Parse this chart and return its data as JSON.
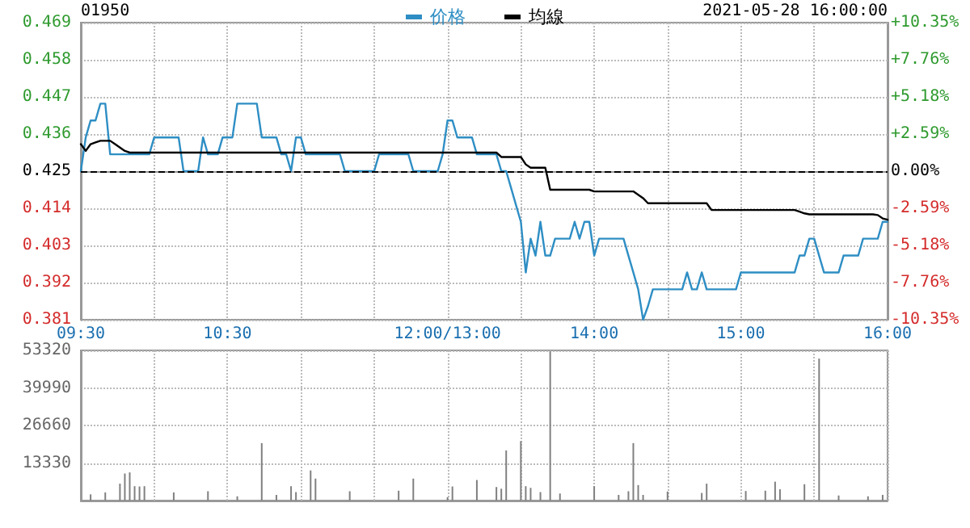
{
  "chart_data": [
    {
      "type": "line",
      "annotations": [
        "01950",
        "2021-05-28 16:00:00"
      ],
      "legend": "top",
      "grid": true,
      "marker": "none",
      "line_style": "solid",
      "categories": [
        "09:30",
        null,
        null,
        null,
        null,
        null,
        null,
        null,
        null,
        null,
        null,
        null,
        null,
        null,
        null,
        null,
        null,
        null,
        null,
        null,
        null,
        null,
        null,
        null,
        null,
        null,
        null,
        null,
        null,
        null,
        "10:30",
        null,
        null,
        null,
        null,
        null,
        null,
        null,
        null,
        null,
        null,
        null,
        null,
        null,
        null,
        null,
        null,
        null,
        null,
        null,
        null,
        null,
        null,
        null,
        null,
        null,
        null,
        null,
        null,
        null,
        null,
        null,
        null,
        null,
        null,
        null,
        null,
        null,
        null,
        null,
        null,
        null,
        null,
        null,
        null,
        "12:00/13:00",
        null,
        null,
        null,
        null,
        null,
        null,
        null,
        null,
        null,
        null,
        null,
        null,
        null,
        null,
        null,
        null,
        null,
        null,
        null,
        null,
        null,
        null,
        null,
        null,
        null,
        null,
        null,
        null,
        null,
        "14:00",
        null,
        null,
        null,
        null,
        null,
        null,
        null,
        null,
        null,
        null,
        null,
        null,
        null,
        null,
        null,
        null,
        null,
        null,
        null,
        null,
        null,
        null,
        null,
        null,
        null,
        null,
        null,
        null,
        null,
        "15:00",
        null,
        null,
        null,
        null,
        null,
        null,
        null,
        null,
        null,
        null,
        null,
        null,
        null,
        null,
        null,
        null,
        null,
        null,
        null,
        null,
        null,
        null,
        null,
        null,
        null,
        null,
        null,
        null,
        null,
        "16:00"
      ],
      "ylim": [
        0.381,
        0.469
      ],
      "yticks": [
        0.381,
        0.392,
        0.403,
        0.414,
        0.425,
        0.436,
        0.447,
        0.458,
        0.469
      ],
      "y2lim": [
        -10.35,
        10.35
      ],
      "y2ticks": [
        {
          "value": -10.35,
          "label": "-10.35%"
        },
        {
          "value": -7.76,
          "label": "-7.76%"
        },
        {
          "value": -5.18,
          "label": "-5.18%"
        },
        {
          "value": -2.59,
          "label": "-2.59%"
        },
        {
          "value": 0,
          "label": "0.00%"
        },
        {
          "value": 2.59,
          "label": "+2.59%"
        },
        {
          "value": 5.18,
          "label": "+5.18%"
        },
        {
          "value": 7.76,
          "label": "+7.76%"
        },
        {
          "value": 10.35,
          "label": "+10.35%"
        }
      ],
      "ref_lines": [
        {
          "axis": "y",
          "value": 0.425,
          "color": "#000000",
          "line_style": "dashed"
        }
      ],
      "series": [
        {
          "name": "价格",
          "color": "#2e8ec4",
          "values": [
            0.425,
            0.435,
            0.44,
            0.44,
            0.445,
            0.445,
            0.43,
            0.43,
            0.43,
            0.43,
            0.43,
            0.43,
            0.43,
            0.43,
            0.43,
            0.435,
            0.435,
            0.435,
            0.435,
            0.435,
            0.435,
            0.425,
            0.425,
            0.425,
            0.425,
            0.435,
            0.43,
            0.43,
            0.43,
            0.435,
            0.435,
            0.435,
            0.445,
            0.445,
            0.445,
            0.445,
            0.445,
            0.435,
            0.435,
            0.435,
            0.435,
            0.43,
            0.43,
            0.425,
            0.435,
            0.435,
            0.43,
            0.43,
            0.43,
            0.43,
            0.43,
            0.43,
            0.43,
            0.43,
            0.425,
            0.425,
            0.425,
            0.425,
            0.425,
            0.425,
            0.425,
            0.43,
            0.43,
            0.43,
            0.43,
            0.43,
            0.43,
            0.43,
            0.425,
            0.425,
            0.425,
            0.425,
            0.425,
            0.425,
            0.43,
            0.44,
            0.44,
            0.435,
            0.435,
            0.435,
            0.435,
            0.43,
            0.43,
            0.43,
            0.43,
            0.43,
            0.425,
            0.425,
            0.42,
            0.415,
            0.41,
            0.395,
            0.405,
            0.4,
            0.41,
            0.4,
            0.4,
            0.405,
            0.405,
            0.405,
            0.405,
            0.41,
            0.405,
            0.41,
            0.41,
            0.4,
            0.405,
            0.405,
            0.405,
            0.405,
            0.405,
            0.405,
            0.4,
            0.395,
            0.39,
            0.381,
            0.385,
            0.39,
            0.39,
            0.39,
            0.39,
            0.39,
            0.39,
            0.39,
            0.395,
            0.39,
            0.39,
            0.395,
            0.39,
            0.39,
            0.39,
            0.39,
            0.39,
            0.39,
            0.39,
            0.395,
            0.395,
            0.395,
            0.395,
            0.395,
            0.395,
            0.395,
            0.395,
            0.395,
            0.395,
            0.395,
            0.395,
            0.4,
            0.4,
            0.405,
            0.405,
            0.4,
            0.395,
            0.395,
            0.395,
            0.395,
            0.4,
            0.4,
            0.4,
            0.4,
            0.405,
            0.405,
            0.405,
            0.405,
            0.41,
            0.41
          ]
        },
        {
          "name": "均線",
          "color": "#000000",
          "values": [
            0.433,
            0.431,
            0.433,
            0.4335,
            0.434,
            0.434,
            0.434,
            0.433,
            0.432,
            0.431,
            0.4305,
            0.4305,
            0.4305,
            0.4305,
            0.4305,
            0.4305,
            0.4305,
            0.4305,
            0.4305,
            0.4305,
            0.4305,
            0.4305,
            0.4305,
            0.4305,
            0.4305,
            0.4305,
            0.4305,
            0.4305,
            0.4305,
            0.4305,
            0.4305,
            0.4305,
            0.4305,
            0.4305,
            0.4305,
            0.4305,
            0.4305,
            0.4305,
            0.4305,
            0.4305,
            0.4305,
            0.4305,
            0.4305,
            0.4305,
            0.4305,
            0.4305,
            0.4305,
            0.4305,
            0.4305,
            0.4305,
            0.4305,
            0.4305,
            0.4305,
            0.4305,
            0.4305,
            0.4305,
            0.4305,
            0.4305,
            0.4305,
            0.4305,
            0.4305,
            0.4305,
            0.4305,
            0.4305,
            0.4305,
            0.4305,
            0.4305,
            0.4305,
            0.4305,
            0.4305,
            0.4305,
            0.4305,
            0.4305,
            0.4305,
            0.4305,
            0.4305,
            0.4305,
            0.4305,
            0.4305,
            0.4305,
            0.4305,
            0.4305,
            0.4305,
            0.4305,
            0.4305,
            0.4305,
            0.4292,
            0.4292,
            0.4292,
            0.4292,
            0.4292,
            0.427,
            0.426,
            0.426,
            0.426,
            0.426,
            0.4195,
            0.4195,
            0.4195,
            0.4195,
            0.4195,
            0.4195,
            0.4195,
            0.4195,
            0.4195,
            0.419,
            0.419,
            0.419,
            0.419,
            0.419,
            0.419,
            0.419,
            0.419,
            0.419,
            0.418,
            0.417,
            0.4155,
            0.4155,
            0.4155,
            0.4155,
            0.4155,
            0.4155,
            0.4155,
            0.4155,
            0.4155,
            0.4155,
            0.4155,
            0.4155,
            0.4155,
            0.4135,
            0.4135,
            0.4135,
            0.4135,
            0.4135,
            0.4135,
            0.4135,
            0.4135,
            0.4135,
            0.4135,
            0.4135,
            0.4135,
            0.4135,
            0.4135,
            0.4135,
            0.4135,
            0.4135,
            0.4135,
            0.413,
            0.4125,
            0.4122,
            0.4122,
            0.4122,
            0.4122,
            0.4122,
            0.4122,
            0.4122,
            0.4122,
            0.4122,
            0.4122,
            0.4122,
            0.4122,
            0.4122,
            0.4122,
            0.412,
            0.411,
            0.4106
          ]
        }
      ]
    },
    {
      "type": "bar",
      "grid": true,
      "tick_labels": "y",
      "legend": false,
      "categories": [
        null,
        null,
        null,
        null,
        null,
        null,
        null,
        null,
        null,
        null,
        null,
        null,
        null,
        null,
        null,
        null,
        null,
        null,
        null,
        null,
        null,
        null,
        null,
        null,
        null,
        null,
        null,
        null,
        null,
        null,
        null,
        null,
        null,
        null,
        null,
        null,
        null,
        null,
        null,
        null,
        null,
        null,
        null,
        null,
        null,
        null,
        null,
        null,
        null,
        null,
        null,
        null,
        null,
        null,
        null,
        null,
        null,
        null,
        null,
        null,
        null,
        null,
        null,
        null,
        null,
        null,
        null,
        null,
        null,
        null,
        null,
        null,
        null,
        null,
        null,
        null,
        null,
        null,
        null,
        null,
        null,
        null,
        null,
        null,
        null,
        null,
        null,
        null,
        null,
        null,
        null,
        null,
        null,
        null,
        null,
        null,
        null,
        null,
        null,
        null,
        null,
        null,
        null,
        null,
        null,
        null,
        null,
        null,
        null,
        null,
        null,
        null,
        null,
        null,
        null,
        null,
        null,
        null,
        null,
        null,
        null,
        null,
        null,
        null,
        null,
        null,
        null,
        null,
        null,
        null,
        null,
        null,
        null,
        null,
        null,
        null,
        null,
        null,
        null,
        null,
        null,
        null,
        null,
        null,
        null,
        null,
        null,
        null,
        null,
        null,
        null,
        null,
        null,
        null,
        null,
        null,
        null,
        null,
        null,
        null,
        null,
        null,
        null,
        null,
        null,
        null
      ],
      "ylim": [
        0,
        53320
      ],
      "yticks": [
        13330,
        26660,
        39990,
        53320
      ],
      "series": [
        {
          "color": "#808080",
          "values": [
            null,
            null,
            2200,
            null,
            null,
            2900,
            null,
            null,
            6000,
            9600,
            10000,
            5100,
            5000,
            5100,
            null,
            null,
            null,
            null,
            null,
            2900,
            null,
            null,
            null,
            null,
            null,
            null,
            3300,
            null,
            null,
            null,
            null,
            null,
            1500,
            null,
            null,
            null,
            null,
            20400,
            null,
            null,
            2000,
            null,
            null,
            5100,
            3000,
            null,
            null,
            10700,
            7800,
            null,
            null,
            null,
            null,
            null,
            null,
            3300,
            null,
            null,
            null,
            null,
            null,
            null,
            null,
            null,
            null,
            3500,
            null,
            null,
            7800,
            null,
            null,
            null,
            null,
            null,
            null,
            1200,
            5000,
            null,
            null,
            null,
            null,
            7300,
            null,
            null,
            null,
            4800,
            4200,
            17800,
            null,
            null,
            21100,
            5100,
            4500,
            null,
            3000,
            null,
            53000,
            null,
            2500,
            null,
            null,
            null,
            null,
            null,
            null,
            5100,
            null,
            null,
            null,
            null,
            2000,
            null,
            3300,
            20400,
            5500,
            2000,
            null,
            null,
            null,
            null,
            3200,
            null,
            null,
            null,
            null,
            null,
            null,
            2700,
            6000,
            null,
            null,
            null,
            null,
            null,
            null,
            null,
            3400,
            null,
            null,
            null,
            3500,
            null,
            6700,
            4000,
            null,
            null,
            null,
            null,
            5800,
            null,
            null,
            50400,
            null,
            null,
            null,
            1800,
            null,
            null,
            null,
            null,
            null,
            1500,
            null,
            null,
            2000,
            null
          ]
        }
      ]
    }
  ]
}
